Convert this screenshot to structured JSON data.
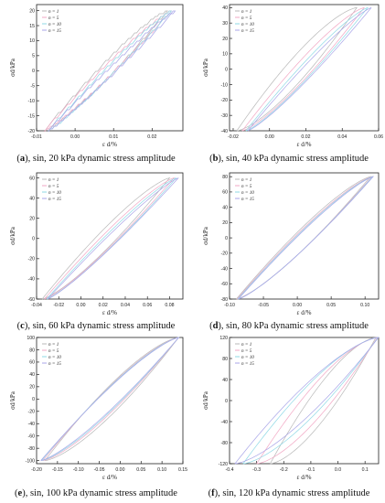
{
  "figure": {
    "colors": {
      "n1": "#b8b8b8",
      "n5": "#f2a7c4",
      "n10": "#8fd9e6",
      "n15": "#a9a6e8",
      "axis": "#222222"
    }
  },
  "chart_data": [
    {
      "type": "line",
      "caption_label": "a",
      "caption_text": ", sin, 20 kPa dynamic stress amplitude",
      "xlabel": "ε d/%",
      "ylabel": "σd/kPa",
      "xlim": [
        -0.01,
        0.028
      ],
      "ylim": [
        -20,
        22
      ],
      "xticks": [
        -0.01,
        0.0,
        0.01,
        0.02
      ],
      "xtick_labels": [
        "-0.01",
        "0.00",
        "0.01",
        "0.02"
      ],
      "yticks": [
        -20,
        -15,
        -10,
        -5,
        0,
        5,
        10,
        15,
        20
      ],
      "ytick_labels": [
        "-20",
        "-15",
        "-10",
        "-5",
        "0",
        "5",
        "10",
        "15",
        "20"
      ],
      "legend": {
        "position": "top-left",
        "entries": [
          "n = 1",
          "n = 5",
          "n = 10",
          "n = 15"
        ]
      },
      "series": [
        {
          "name": "n = 1",
          "amp": 20,
          "x_min": -0.008,
          "x_max": 0.024,
          "hyst": 0.08,
          "stairs": true
        },
        {
          "name": "n = 5",
          "amp": 20,
          "x_min": -0.008,
          "x_max": 0.025,
          "hyst": 0.06,
          "stairs": true
        },
        {
          "name": "n = 10",
          "amp": 20,
          "x_min": -0.007,
          "x_max": 0.025,
          "hyst": 0.05,
          "stairs": true
        },
        {
          "name": "n = 15",
          "amp": 20,
          "x_min": -0.007,
          "x_max": 0.026,
          "hyst": 0.04,
          "stairs": true
        }
      ]
    },
    {
      "type": "line",
      "caption_label": "b",
      "caption_text": ", sin, 40 kPa dynamic stress amplitude",
      "xlabel": "ε d/%",
      "ylabel": "σd/kPa",
      "xlim": [
        -0.022,
        0.06
      ],
      "ylim": [
        -40,
        42
      ],
      "xticks": [
        -0.02,
        0.0,
        0.02,
        0.04,
        0.06
      ],
      "xtick_labels": [
        "-0.02",
        "0.00",
        "0.02",
        "0.04",
        "0.06"
      ],
      "yticks": [
        -40,
        -30,
        -20,
        -10,
        0,
        10,
        20,
        30,
        40
      ],
      "ytick_labels": [
        "-40",
        "-30",
        "-20",
        "-10",
        "0",
        "10",
        "20",
        "30",
        "40"
      ],
      "legend": {
        "position": "top-left",
        "entries": [
          "n = 1",
          "n = 5",
          "n = 10",
          "n = 15"
        ]
      },
      "series": [
        {
          "name": "n = 1",
          "amp": 40,
          "x_min": -0.018,
          "x_max": 0.048,
          "hyst": 0.14,
          "stairs": false
        },
        {
          "name": "n = 5",
          "amp": 40,
          "x_min": -0.015,
          "x_max": 0.052,
          "hyst": 0.1,
          "stairs": false
        },
        {
          "name": "n = 10",
          "amp": 40,
          "x_min": -0.013,
          "x_max": 0.054,
          "hyst": 0.08,
          "stairs": false
        },
        {
          "name": "n = 15",
          "amp": 40,
          "x_min": -0.012,
          "x_max": 0.056,
          "hyst": 0.07,
          "stairs": false
        }
      ]
    },
    {
      "type": "line",
      "caption_label": "c",
      "caption_text": ", sin, 60 kPa dynamic stress amplitude",
      "xlabel": "ε d/%",
      "ylabel": "σd/kPa",
      "xlim": [
        -0.04,
        0.092
      ],
      "ylim": [
        -60,
        65
      ],
      "xticks": [
        -0.04,
        -0.02,
        0.0,
        0.02,
        0.04,
        0.06,
        0.08
      ],
      "xtick_labels": [
        "-0.04",
        "-0.02",
        "0.00",
        "0.02",
        "0.04",
        "0.06",
        "0.08"
      ],
      "yticks": [
        -60,
        -40,
        -20,
        0,
        20,
        40,
        60
      ],
      "ytick_labels": [
        "-60",
        "-40",
        "-20",
        "0",
        "20",
        "40",
        "60"
      ],
      "legend": {
        "position": "top-left",
        "entries": [
          "n = 1",
          "n = 5",
          "n = 10",
          "n = 15"
        ]
      },
      "series": [
        {
          "name": "n = 1",
          "amp": 60,
          "x_min": -0.035,
          "x_max": 0.08,
          "hyst": 0.1,
          "stairs": false
        },
        {
          "name": "n = 5",
          "amp": 60,
          "x_min": -0.033,
          "x_max": 0.084,
          "hyst": 0.08,
          "stairs": false
        },
        {
          "name": "n = 10",
          "amp": 60,
          "x_min": -0.031,
          "x_max": 0.086,
          "hyst": 0.07,
          "stairs": false
        },
        {
          "name": "n = 15",
          "amp": 60,
          "x_min": -0.03,
          "x_max": 0.088,
          "hyst": 0.06,
          "stairs": false
        }
      ]
    },
    {
      "type": "line",
      "caption_label": "d",
      "caption_text": ", sin, 80 kPa dynamic stress amplitude",
      "xlabel": "ε d/%",
      "ylabel": "σd/kPa",
      "xlim": [
        -0.1,
        0.12
      ],
      "ylim": [
        -80,
        85
      ],
      "xticks": [
        -0.1,
        -0.05,
        0.0,
        0.05,
        0.1
      ],
      "xtick_labels": [
        "-0.10",
        "-0.05",
        "0.00",
        "0.05",
        "0.10"
      ],
      "yticks": [
        -80,
        -60,
        -40,
        -20,
        0,
        20,
        40,
        60,
        80
      ],
      "ytick_labels": [
        "-80",
        "-60",
        "-40",
        "-20",
        "0",
        "20",
        "40",
        "60",
        "80"
      ],
      "legend": {
        "position": "top-left",
        "entries": [
          "n = 1",
          "n = 5",
          "n = 10",
          "n = 15"
        ]
      },
      "series": [
        {
          "name": "n = 1",
          "amp": 80,
          "x_min": -0.09,
          "x_max": 0.108,
          "hyst": 0.1,
          "stairs": false
        },
        {
          "name": "n = 5",
          "amp": 80,
          "x_min": -0.089,
          "x_max": 0.11,
          "hyst": 0.09,
          "stairs": false
        },
        {
          "name": "n = 10",
          "amp": 80,
          "x_min": -0.088,
          "x_max": 0.111,
          "hyst": 0.085,
          "stairs": false
        },
        {
          "name": "n = 15",
          "amp": 80,
          "x_min": -0.087,
          "x_max": 0.112,
          "hyst": 0.08,
          "stairs": false
        }
      ]
    },
    {
      "type": "line",
      "caption_label": "e",
      "caption_text": ", sin, 100 kPa dynamic stress amplitude",
      "xlabel": "ε d/%",
      "ylabel": "σd/kPa",
      "xlim": [
        -0.2,
        0.15
      ],
      "ylim": [
        -105,
        100
      ],
      "xticks": [
        -0.2,
        -0.15,
        -0.1,
        -0.05,
        0.0,
        0.05,
        0.1,
        0.15
      ],
      "xtick_labels": [
        "-0.20",
        "-0.15",
        "-0.10",
        "-0.05",
        "0.00",
        "0.05",
        "0.10",
        "0.15"
      ],
      "yticks": [
        -100,
        -80,
        -60,
        -40,
        -20,
        0,
        20,
        40,
        60,
        80,
        100
      ],
      "ytick_labels": [
        "-100",
        "-80",
        "-60",
        "-40",
        "-20",
        "0",
        "20",
        "40",
        "60",
        "80",
        "100"
      ],
      "legend": {
        "position": "top-left",
        "entries": [
          "n = 1",
          "n = 5",
          "n = 10",
          "n = 15"
        ]
      },
      "series": [
        {
          "name": "n = 1",
          "amp": 100,
          "x_min": -0.18,
          "x_max": 0.14,
          "hyst": 0.14,
          "stairs": false
        },
        {
          "name": "n = 5",
          "amp": 100,
          "x_min": -0.185,
          "x_max": 0.14,
          "hyst": 0.12,
          "stairs": false
        },
        {
          "name": "n = 10",
          "amp": 100,
          "x_min": -0.188,
          "x_max": 0.14,
          "hyst": 0.11,
          "stairs": false
        },
        {
          "name": "n = 15",
          "amp": 100,
          "x_min": -0.19,
          "x_max": 0.14,
          "hyst": 0.1,
          "stairs": false
        }
      ]
    },
    {
      "type": "line",
      "caption_label": "f",
      "caption_text": ", sin, 120 kPa dynamic stress amplitude",
      "xlabel": "ε d/%",
      "ylabel": "σd/kPa",
      "xlim": [
        -0.4,
        0.15
      ],
      "ylim": [
        -120,
        120
      ],
      "xticks": [
        -0.4,
        -0.3,
        -0.2,
        -0.1,
        0.0,
        0.1
      ],
      "xtick_labels": [
        "-0.4",
        "-0.3",
        "-0.2",
        "-0.1",
        "0.0",
        "0.1"
      ],
      "yticks": [
        -120,
        -80,
        -40,
        0,
        40,
        80,
        120
      ],
      "ytick_labels": [
        "-120",
        "-80",
        "-40",
        "0",
        "40",
        "80",
        "120"
      ],
      "legend": {
        "position": "top-left",
        "entries": [
          "n = 1",
          "n = 5",
          "n = 10",
          "n = 15"
        ]
      },
      "series": [
        {
          "name": "n = 1",
          "amp": 120,
          "x_min": -0.25,
          "x_max": 0.14,
          "hyst": 0.18,
          "stairs": false
        },
        {
          "name": "n = 5",
          "amp": 120,
          "x_min": -0.3,
          "x_max": 0.145,
          "hyst": 0.17,
          "stairs": false
        },
        {
          "name": "n = 10",
          "amp": 120,
          "x_min": -0.35,
          "x_max": 0.148,
          "hyst": 0.16,
          "stairs": false
        },
        {
          "name": "n = 15",
          "amp": 120,
          "x_min": -0.38,
          "x_max": 0.15,
          "hyst": 0.15,
          "stairs": false
        }
      ]
    }
  ]
}
